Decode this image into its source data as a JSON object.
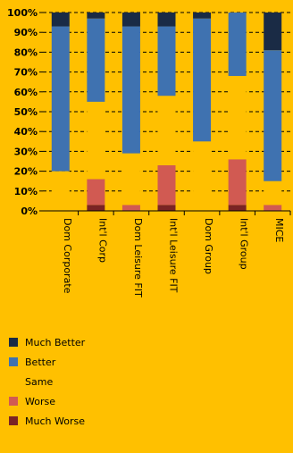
{
  "chart_data": {
    "type": "bar",
    "stacked": true,
    "percent": true,
    "categories": [
      "Dom Corporate",
      "Int'l Corp",
      "Dom Leisure FIT",
      "Int'l Leisure FIT",
      "Dom Group",
      "Int'l Group",
      "MICE"
    ],
    "series": [
      {
        "name": "Much Worse",
        "color": "#7B2424",
        "values": [
          0,
          3,
          0,
          3,
          0,
          3,
          0
        ]
      },
      {
        "name": "Worse",
        "color": "#D15A52",
        "values": [
          0,
          13,
          3,
          20,
          0,
          23,
          3
        ]
      },
      {
        "name": "Same",
        "color": "#FFC000",
        "values": [
          20,
          39,
          26,
          35,
          35,
          42,
          12
        ]
      },
      {
        "name": "Better",
        "color": "#3F72B0",
        "values": [
          73,
          42,
          64,
          35,
          62,
          32,
          66
        ]
      },
      {
        "name": "Much Better",
        "color": "#1A2B45",
        "values": [
          7,
          3,
          7,
          7,
          3,
          0,
          19
        ]
      }
    ],
    "ylim": [
      0,
      100
    ],
    "yticks": [
      "0%",
      "10%",
      "20%",
      "30%",
      "40%",
      "50%",
      "60%",
      "70%",
      "80%",
      "90%",
      "100%"
    ],
    "grid": "dashed-horizontal",
    "legend_position": "bottom-left"
  }
}
